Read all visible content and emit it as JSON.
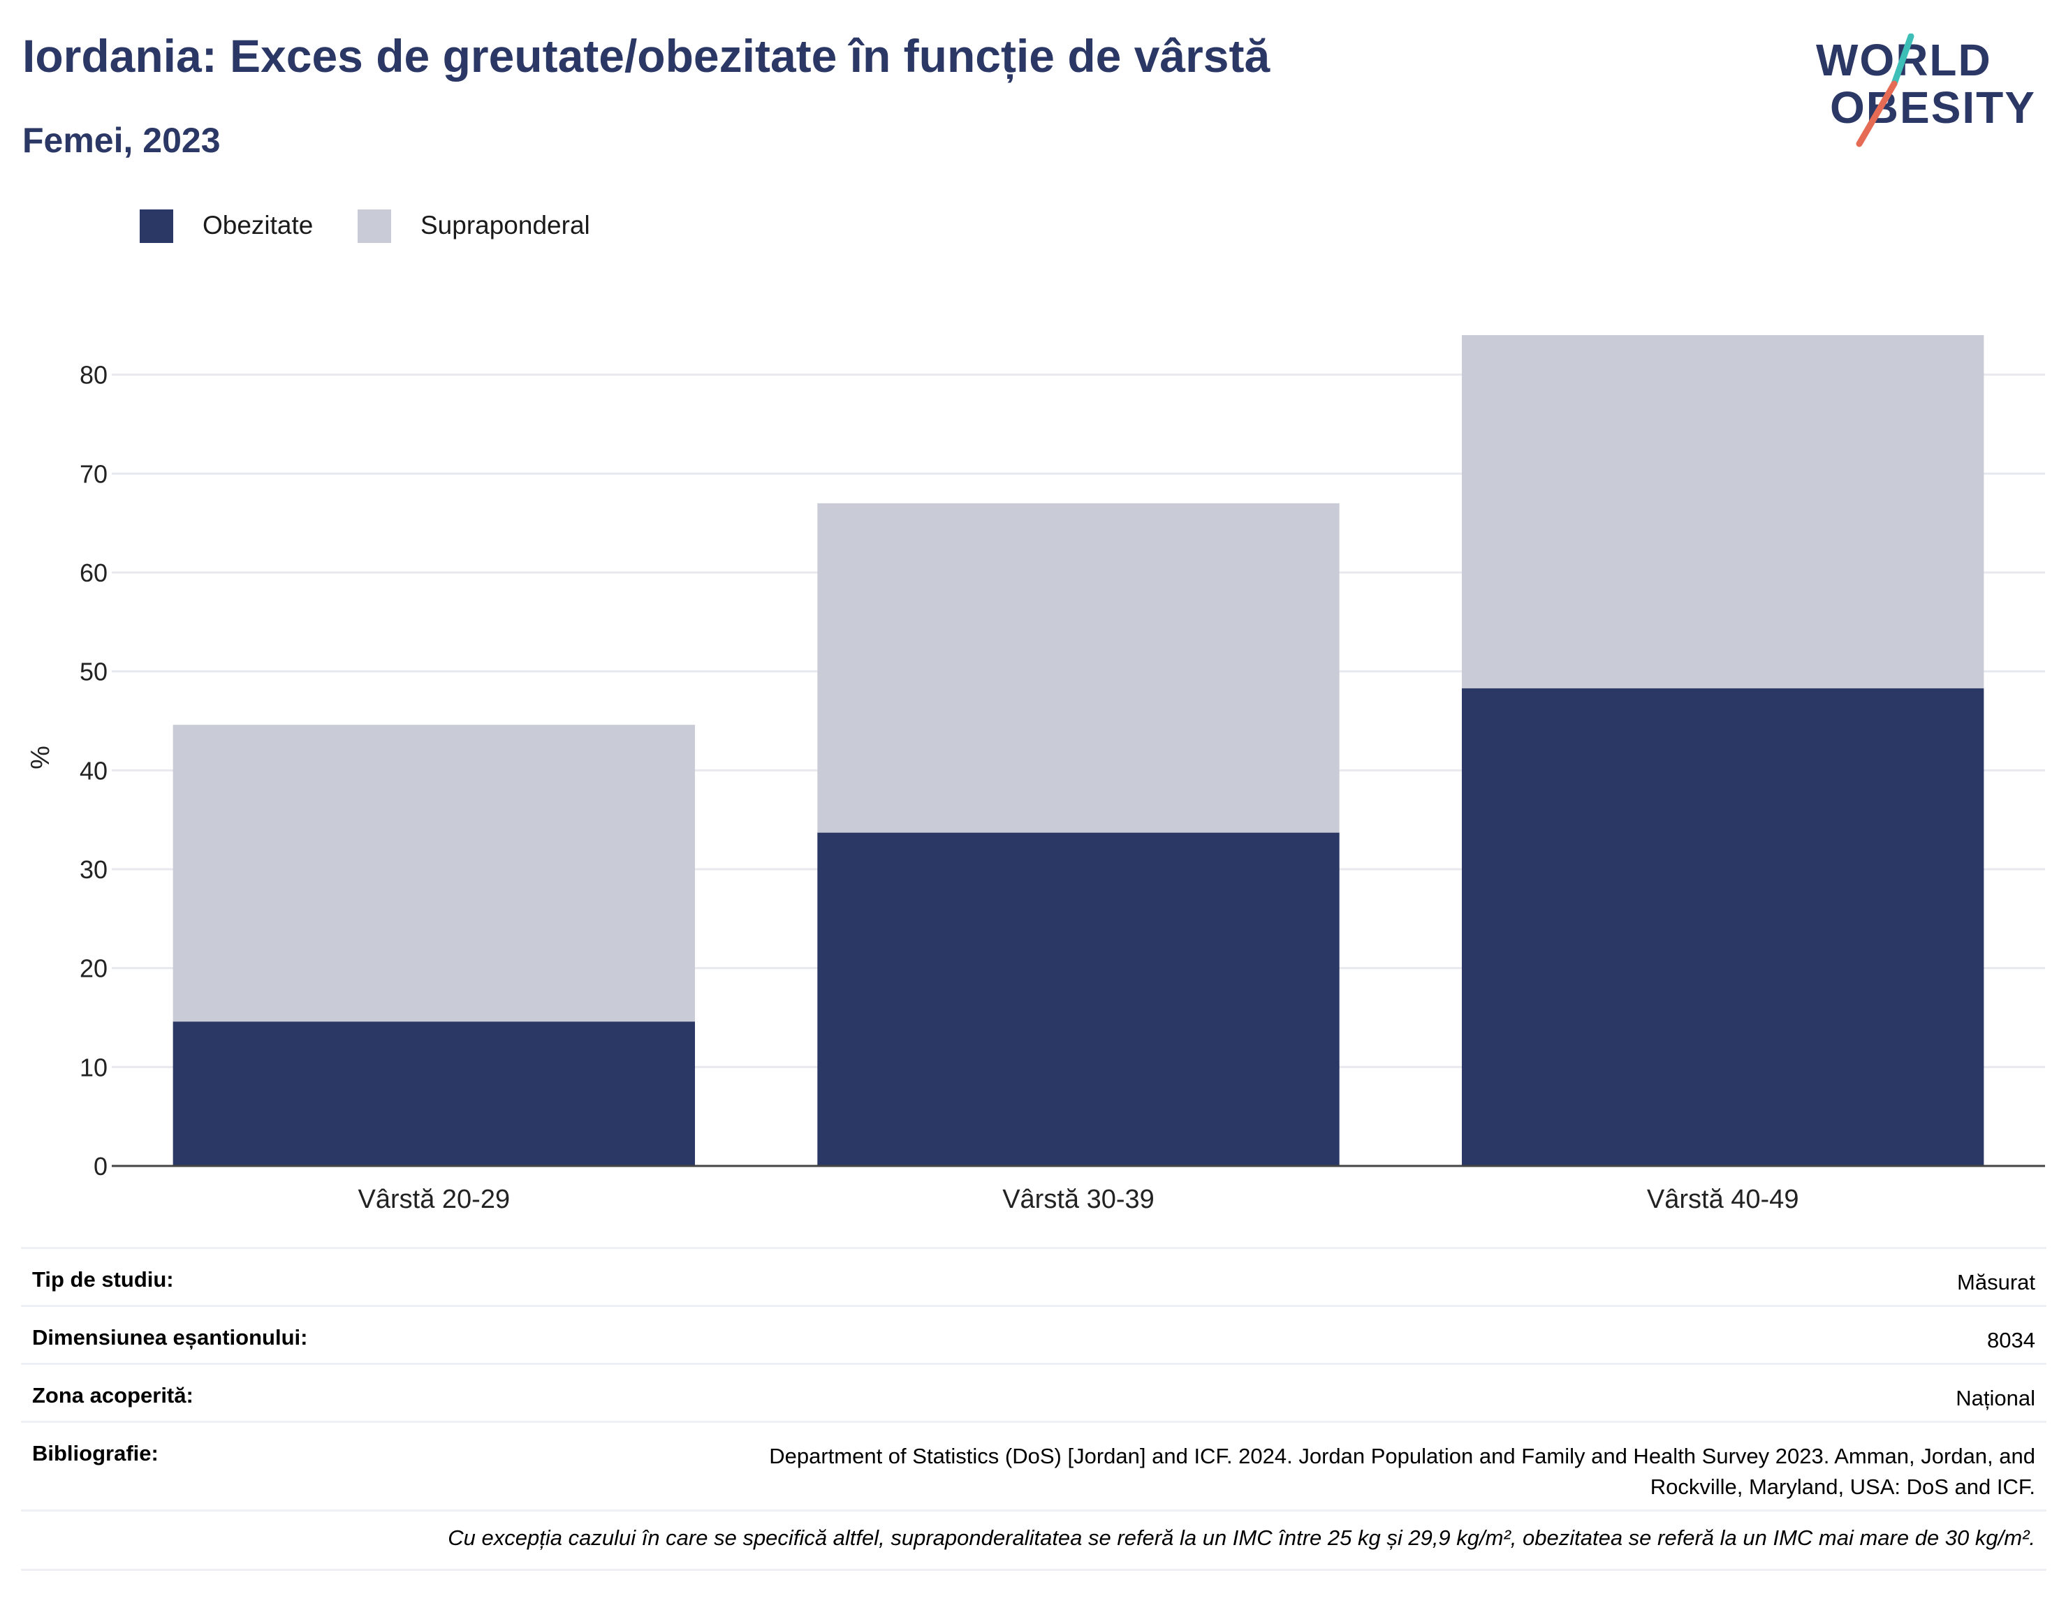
{
  "header": {
    "title": "Iordania: Exces de greutate/obezitate în funcție de vârstă",
    "subtitle": "Femei, 2023"
  },
  "logo": {
    "line1": "WORLD",
    "line2": "OBESITY"
  },
  "colors": {
    "obesity": "#2b3764",
    "overweight": "#c9cbd7",
    "title": "#2b3764",
    "logo_teal": "#3dbfb8",
    "logo_coral": "#e66b55"
  },
  "chart_data": {
    "type": "bar",
    "stacked": true,
    "title": "Iordania: Exces de greutate/obezitate în funcție de vârstă",
    "subtitle": "Femei, 2023",
    "xlabel": "",
    "ylabel": "%",
    "categories": [
      "Vârstă 20-29",
      "Vârstă 30-39",
      "Vârstă 40-49"
    ],
    "series": [
      {
        "name": "Obezitate",
        "values": [
          14.6,
          33.7,
          48.3
        ],
        "color": "#2b3764"
      },
      {
        "name": "Supraponderal",
        "values": [
          30.0,
          33.3,
          35.7
        ],
        "color": "#c9cbd7"
      }
    ],
    "ylim": [
      0,
      84
    ],
    "yticks": [
      0,
      10,
      20,
      30,
      40,
      50,
      60,
      70,
      80
    ],
    "grid": true,
    "legend_position": "top-left"
  },
  "info": [
    {
      "label": "Tip de studiu:",
      "value": "Măsurat"
    },
    {
      "label": "Dimensiunea eșantionului:",
      "value": "8034"
    },
    {
      "label": "Zona acoperită:",
      "value": "Național"
    },
    {
      "label": "Bibliografie:",
      "value_line1": "Department of Statistics (DoS) [Jordan] and ICF. 2024. Jordan Population and Family and Health Survey 2023. Amman, Jordan, and",
      "value_line2": "Rockville, Maryland, USA: DoS and ICF."
    }
  ],
  "note": "Cu excepția cazului în care se specifică altfel, supraponderalitatea se referă la un IMC între 25 kg și 29,9 kg/m², obezitatea se referă la un IMC mai mare de 30 kg/m²."
}
